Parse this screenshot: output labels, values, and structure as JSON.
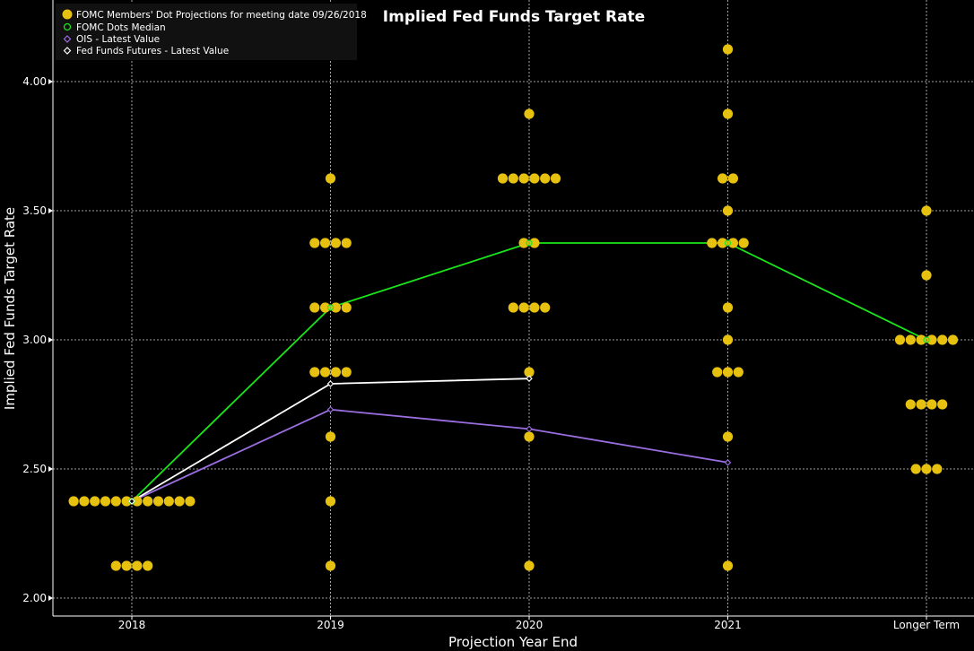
{
  "chart_data": {
    "type": "scatter",
    "title": "Implied Fed Funds Target Rate",
    "xlabel": "Projection Year End",
    "ylabel": "Implied Fed Funds Target Rate",
    "categories": [
      "2018",
      "2019",
      "2020",
      "2021",
      "Longer Term"
    ],
    "ylim": [
      1.85,
      4.3
    ],
    "yticks": [
      "2.00",
      "2.50",
      "3.00",
      "3.50",
      "4.00"
    ],
    "grid": true,
    "legend_position": "top-left",
    "dot_projections": {
      "name": "FOMC Members' Dot Projections for meeting date 09/26/2018",
      "color": "#e6c10f",
      "groups": [
        {
          "category": "2018",
          "levels": [
            {
              "rate": 2.375,
              "count": 12
            },
            {
              "rate": 2.125,
              "count": 4
            }
          ]
        },
        {
          "category": "2019",
          "levels": [
            {
              "rate": 3.625,
              "count": 1
            },
            {
              "rate": 3.375,
              "count": 4
            },
            {
              "rate": 3.125,
              "count": 4
            },
            {
              "rate": 2.875,
              "count": 4
            },
            {
              "rate": 2.625,
              "count": 1
            },
            {
              "rate": 2.375,
              "count": 1
            },
            {
              "rate": 2.125,
              "count": 1
            }
          ]
        },
        {
          "category": "2020",
          "levels": [
            {
              "rate": 3.875,
              "count": 1
            },
            {
              "rate": 3.625,
              "count": 6
            },
            {
              "rate": 3.375,
              "count": 2
            },
            {
              "rate": 3.125,
              "count": 4
            },
            {
              "rate": 2.875,
              "count": 1
            },
            {
              "rate": 2.625,
              "count": 1
            },
            {
              "rate": 2.125,
              "count": 1
            }
          ]
        },
        {
          "category": "2021",
          "levels": [
            {
              "rate": 4.125,
              "count": 1
            },
            {
              "rate": 3.875,
              "count": 1
            },
            {
              "rate": 3.625,
              "count": 2
            },
            {
              "rate": 3.5,
              "count": 1
            },
            {
              "rate": 3.375,
              "count": 4
            },
            {
              "rate": 3.125,
              "count": 1
            },
            {
              "rate": 3.0,
              "count": 1
            },
            {
              "rate": 2.875,
              "count": 3
            },
            {
              "rate": 2.625,
              "count": 1
            },
            {
              "rate": 2.125,
              "count": 1
            }
          ]
        },
        {
          "category": "Longer Term",
          "levels": [
            {
              "rate": 3.5,
              "count": 1
            },
            {
              "rate": 3.25,
              "count": 1
            },
            {
              "rate": 3.0,
              "count": 6
            },
            {
              "rate": 2.75,
              "count": 4
            },
            {
              "rate": 2.5,
              "count": 3
            }
          ]
        }
      ]
    },
    "series": [
      {
        "name": "FOMC Dots Median",
        "color": "#19e619",
        "marker": "circle",
        "points": [
          {
            "x": "2018",
            "y": 2.375
          },
          {
            "x": "2019",
            "y": 3.125
          },
          {
            "x": "2020",
            "y": 3.375
          },
          {
            "x": "2021",
            "y": 3.375
          },
          {
            "x": "Longer Term",
            "y": 3.0
          }
        ]
      },
      {
        "name": "OIS - Latest Value",
        "color": "#9b6ee0",
        "marker": "diamond",
        "points": [
          {
            "x": "2018",
            "y": 2.375
          },
          {
            "x": "2019",
            "y": 2.73
          },
          {
            "x": "2020",
            "y": 2.655
          },
          {
            "x": "2021",
            "y": 2.525
          }
        ]
      },
      {
        "name": "Fed Funds Futures - Latest Value",
        "color": "#ffffff",
        "marker": "diamond",
        "points": [
          {
            "x": "2018",
            "y": 2.375
          },
          {
            "x": "2019",
            "y": 2.83
          },
          {
            "x": "2020",
            "y": 2.85
          }
        ]
      }
    ]
  }
}
